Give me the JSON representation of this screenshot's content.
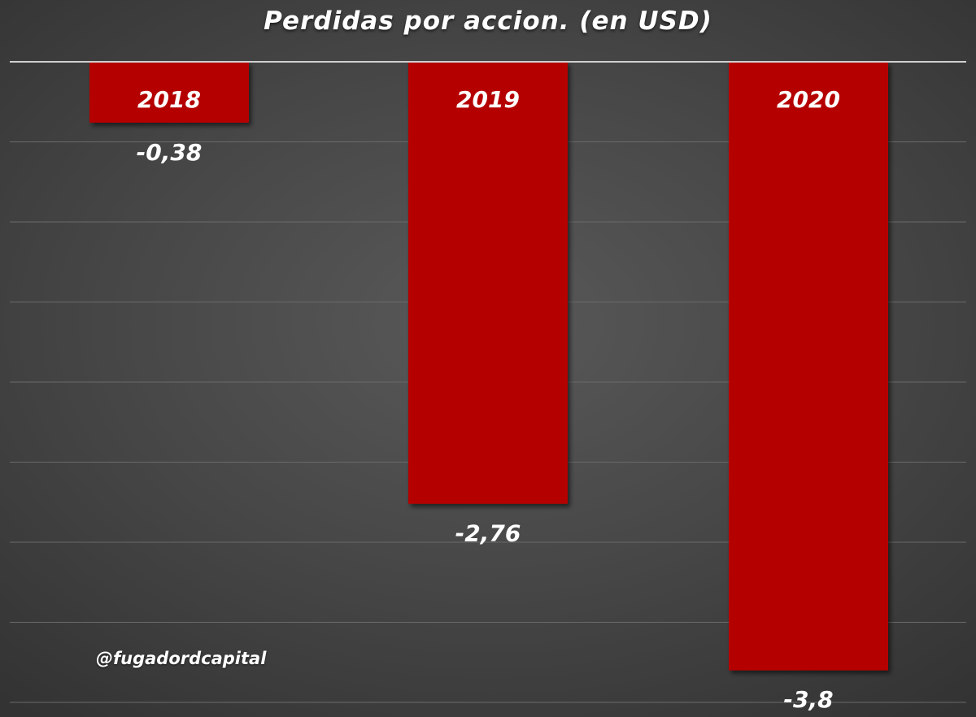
{
  "chart_data": {
    "type": "bar",
    "title": "Perdidas por accion. (en USD)",
    "categories": [
      "2018",
      "2019",
      "2020"
    ],
    "values": [
      -0.38,
      -2.76,
      -3.8
    ],
    "value_labels": [
      "-0,38",
      "-2,76",
      "-3,8"
    ],
    "xlabel": "",
    "ylabel": "",
    "ylim": [
      -4,
      0
    ],
    "grid": true,
    "legend": "none"
  },
  "watermark": "@fugadordcapital",
  "colors": {
    "bar": "#b50000",
    "text": "#ffffff",
    "axis": "#cfcfcf",
    "grid": "#6a6a6a"
  }
}
